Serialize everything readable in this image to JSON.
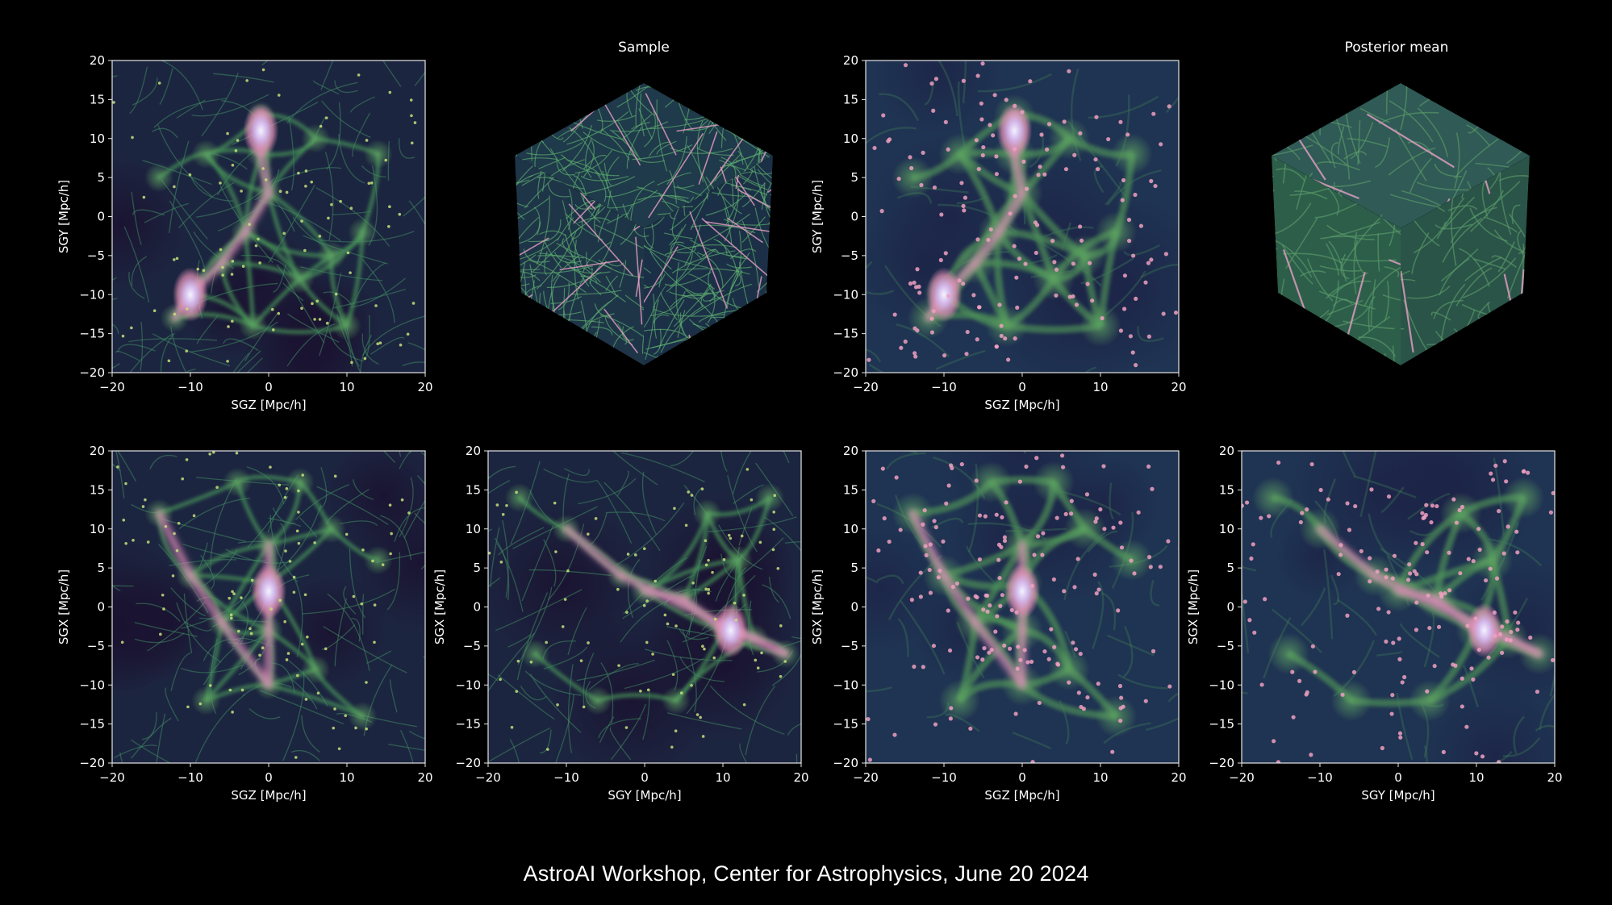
{
  "titles": {
    "sample": "Sample",
    "posterior_mean": "Posterior mean"
  },
  "footer": "AstroAI Workshop, Center for Astrophysics, June 20 2024",
  "axis": {
    "ticks": [
      "−20",
      "−15",
      "−10",
      "−5",
      "0",
      "5",
      "10",
      "15",
      "20"
    ],
    "xticks": [
      "−20",
      "−10",
      "0",
      "10",
      "20"
    ],
    "ylabel_sgy": "SGY [Mpc/h]",
    "ylabel_sgx": "SGX [Mpc/h]",
    "xlabel_sgz": "SGZ [Mpc/h]",
    "xlabel_sgy": "SGY [Mpc/h]"
  },
  "colors": {
    "background": "#000000",
    "void": "#1b2744",
    "filament": "#4f9a5a",
    "node": "#e896b8",
    "core": "#e8ecff",
    "text": "#ffffff"
  },
  "panels": [
    {
      "id": "top-sample-slice",
      "xlabel": "SGZ [Mpc/h]",
      "ylabel": "SGY [Mpc/h]",
      "kind": "sample"
    },
    {
      "id": "top-posterior-slice",
      "xlabel": "SGZ [Mpc/h]",
      "ylabel": "SGY [Mpc/h]",
      "kind": "mean"
    },
    {
      "id": "bottom-sample-sgz",
      "xlabel": "SGZ [Mpc/h]",
      "ylabel": "SGX [Mpc/h]",
      "kind": "sample"
    },
    {
      "id": "bottom-sample-sgy",
      "xlabel": "SGY [Mpc/h]",
      "ylabel": "SGX [Mpc/h]",
      "kind": "sample"
    },
    {
      "id": "bottom-mean-sgz",
      "xlabel": "SGZ [Mpc/h]",
      "ylabel": "SGX [Mpc/h]",
      "kind": "mean"
    },
    {
      "id": "bottom-mean-sgy",
      "xlabel": "SGY [Mpc/h]",
      "ylabel": "SGX [Mpc/h]",
      "kind": "mean"
    }
  ]
}
